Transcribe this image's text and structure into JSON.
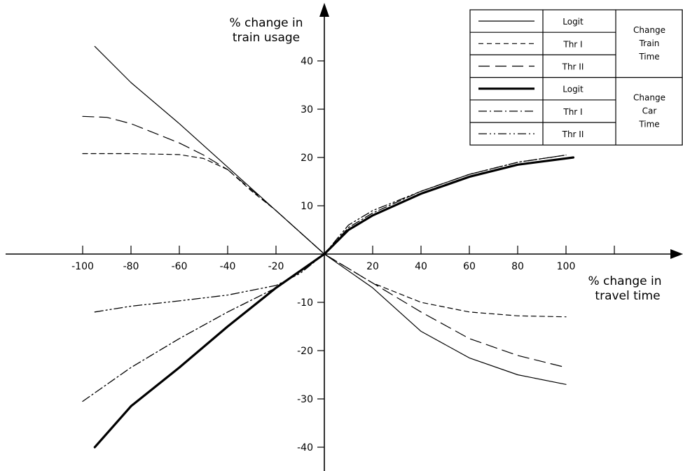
{
  "chart_data": {
    "type": "line",
    "xlabel": [
      "% change in",
      "travel time"
    ],
    "ylabel": [
      "% change in",
      "train usage"
    ],
    "xlim": [
      -100,
      100
    ],
    "ylim": [
      -40,
      40
    ],
    "x_ticks": [
      -100,
      -80,
      -60,
      -40,
      -20,
      20,
      40,
      60,
      80,
      100
    ],
    "x_tick_labels": [
      "-100",
      "-80",
      "-60",
      "-40",
      "-20",
      "20",
      "40",
      "60",
      "80",
      "100"
    ],
    "y_ticks": [
      40,
      30,
      20,
      10,
      -10,
      -20,
      -30,
      -40
    ],
    "y_tick_labels": [
      "40",
      "30",
      "20",
      "10",
      "-10",
      "-20",
      "-30",
      "-40"
    ],
    "grid": false,
    "legend_position": "top-right",
    "legend": {
      "groups": [
        {
          "label": [
            "Change",
            "Train",
            "Time"
          ],
          "entries": [
            {
              "label": "Logit",
              "style": "thin-solid"
            },
            {
              "label": "Thr I",
              "style": "short-dash"
            },
            {
              "label": "Thr II",
              "style": "long-dash"
            }
          ]
        },
        {
          "label": [
            "Change",
            "Car",
            "Time"
          ],
          "entries": [
            {
              "label": "Logit",
              "style": "thick-solid"
            },
            {
              "label": "Thr I",
              "style": "dash-dot"
            },
            {
              "label": "Thr II",
              "style": "dash-dot-dot"
            }
          ]
        }
      ]
    },
    "series": [
      {
        "group": "Change Train Time",
        "legend_label": "Logit",
        "style": "thin-solid",
        "x": [
          -95,
          -80,
          -60,
          -40,
          -20,
          0,
          20,
          40,
          60,
          80,
          100
        ],
        "y": [
          43,
          35.5,
          27,
          18,
          9,
          0,
          -7,
          -16,
          -21.5,
          -25,
          -27
        ]
      },
      {
        "group": "Change Train Time",
        "legend_label": "Thr I",
        "style": "short-dash",
        "x": [
          -100,
          -80,
          -60,
          -50,
          -40,
          -30,
          -20,
          0,
          20,
          40,
          60,
          80,
          100
        ],
        "y": [
          20.8,
          20.8,
          20.6,
          19.8,
          17.5,
          13,
          9,
          0,
          -6,
          -10,
          -12,
          -12.8,
          -13
        ]
      },
      {
        "group": "Change Train Time",
        "legend_label": "Thr II",
        "style": "long-dash",
        "x": [
          -100,
          -90,
          -80,
          -60,
          -50,
          -40,
          -20,
          0,
          20,
          40,
          60,
          80,
          100
        ],
        "y": [
          28.5,
          28.3,
          27,
          23,
          20.5,
          17.5,
          9,
          0,
          -6,
          -12,
          -17.5,
          -21,
          -23.5
        ]
      },
      {
        "group": "Change Car Time",
        "legend_label": "Logit",
        "style": "thick-solid",
        "x": [
          -95,
          -80,
          -60,
          -40,
          -20,
          0,
          10,
          20,
          40,
          60,
          80,
          103
        ],
        "y": [
          -40,
          -31.5,
          -23.5,
          -15,
          -7,
          0,
          5,
          8,
          12.5,
          16,
          18.5,
          20
        ]
      },
      {
        "group": "Change Car Time",
        "legend_label": "Thr I",
        "style": "dash-dot",
        "x": [
          -100,
          -80,
          -60,
          -40,
          -20,
          0,
          10,
          20,
          40,
          60,
          80,
          100
        ],
        "y": [
          -30.5,
          -23.5,
          -17.5,
          -12,
          -7,
          0,
          5.5,
          8.5,
          13,
          16.5,
          19,
          20.5
        ]
      },
      {
        "group": "Change Car Time",
        "legend_label": "Thr II",
        "style": "dash-dot-dot",
        "x": [
          -95,
          -80,
          -60,
          -40,
          -20,
          -10,
          0,
          10,
          20,
          40,
          60,
          80,
          100
        ],
        "y": [
          -12,
          -10.8,
          -9.7,
          -8.5,
          -6.5,
          -4,
          0,
          6,
          9,
          13,
          16.5,
          19,
          20.5
        ]
      }
    ]
  }
}
